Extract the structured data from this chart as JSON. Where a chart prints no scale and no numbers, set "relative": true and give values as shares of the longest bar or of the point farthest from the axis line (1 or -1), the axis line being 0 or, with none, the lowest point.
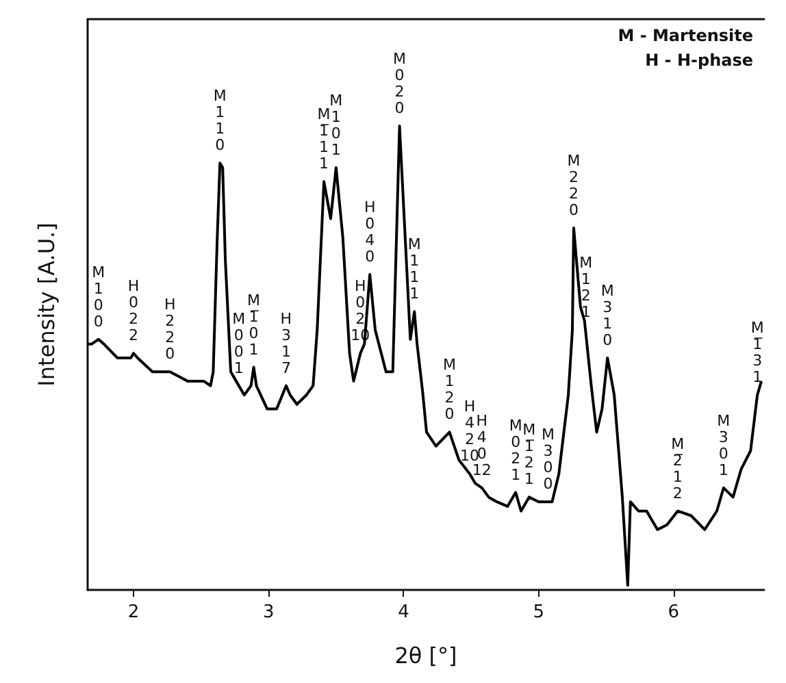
{
  "chart_data": {
    "type": "line",
    "xlabel": "2θ [°]",
    "ylabel": "Intensity [A.U.]",
    "relative": true,
    "xlim": [
      1.66,
      6.67
    ],
    "xticks": [
      2,
      3,
      4,
      5,
      6
    ],
    "grid": false,
    "marker": "none",
    "line_style": "solid",
    "series": [
      {
        "color": "#000000",
        "x": [
          1.66,
          1.69,
          1.74,
          1.78,
          1.88,
          1.98,
          2.0,
          2.03,
          2.14,
          2.24,
          2.27,
          2.4,
          2.52,
          2.57,
          2.59,
          2.62,
          2.64,
          2.66,
          2.68,
          2.72,
          2.76,
          2.82,
          2.87,
          2.89,
          2.91,
          2.99,
          3.06,
          3.13,
          3.16,
          3.21,
          3.28,
          3.33,
          3.36,
          3.41,
          3.46,
          3.5,
          3.55,
          3.6,
          3.63,
          3.68,
          3.71,
          3.75,
          3.79,
          3.87,
          3.92,
          3.97,
          4.05,
          4.08,
          4.1,
          4.14,
          4.17,
          4.24,
          4.34,
          4.41,
          4.49,
          4.53,
          4.58,
          4.63,
          4.69,
          4.77,
          4.83,
          4.87,
          4.93,
          5.0,
          5.1,
          5.15,
          5.22,
          5.25,
          5.26,
          5.31,
          5.34,
          5.39,
          5.43,
          5.47,
          5.51,
          5.56,
          5.62,
          5.66,
          5.68,
          5.74,
          5.8,
          5.88,
          5.95,
          6.03,
          6.13,
          6.23,
          6.32,
          6.37,
          6.44,
          6.5,
          6.57,
          6.62,
          6.65
        ],
        "values": [
          0.53,
          0.53,
          0.54,
          0.53,
          0.5,
          0.5,
          0.51,
          0.5,
          0.47,
          0.47,
          0.47,
          0.45,
          0.45,
          0.44,
          0.47,
          0.76,
          0.92,
          0.91,
          0.71,
          0.47,
          0.45,
          0.42,
          0.44,
          0.48,
          0.44,
          0.39,
          0.39,
          0.44,
          0.42,
          0.4,
          0.42,
          0.44,
          0.56,
          0.88,
          0.8,
          0.91,
          0.76,
          0.51,
          0.45,
          0.51,
          0.53,
          0.68,
          0.56,
          0.47,
          0.47,
          1.0,
          0.54,
          0.6,
          0.53,
          0.43,
          0.34,
          0.31,
          0.34,
          0.28,
          0.25,
          0.23,
          0.22,
          0.2,
          0.19,
          0.18,
          0.21,
          0.17,
          0.2,
          0.19,
          0.19,
          0.25,
          0.42,
          0.56,
          0.78,
          0.61,
          0.58,
          0.44,
          0.34,
          0.39,
          0.5,
          0.42,
          0.2,
          0.01,
          0.19,
          0.17,
          0.17,
          0.13,
          0.14,
          0.17,
          0.16,
          0.13,
          0.17,
          0.22,
          0.2,
          0.26,
          0.3,
          0.42,
          0.45
        ]
      }
    ],
    "annotations": [
      "M - Martensite",
      "H - H-phase",
      {
        "text": "M 1 0 0",
        "x": 1.74,
        "y": 0.54
      },
      {
        "text": "H 0 2 2",
        "x": 2.0,
        "y": 0.51
      },
      {
        "text": "H 2 2 0",
        "x": 2.27,
        "y": 0.47
      },
      {
        "text": "M 1 1 0",
        "x": 2.64,
        "y": 0.92
      },
      {
        "text": "M 0 0 1",
        "x": 2.78,
        "y": 0.44
      },
      {
        "text": "M 1̅ 0 1",
        "x": 2.89,
        "y": 0.48
      },
      {
        "text": "H 3 1 7",
        "x": 3.13,
        "y": 0.44
      },
      {
        "text": "M 1̅ 1 1",
        "x": 3.41,
        "y": 0.88
      },
      {
        "text": "M 1 0 1",
        "x": 3.5,
        "y": 0.91
      },
      {
        "text": "H 0 2 10",
        "x": 3.68,
        "y": 0.51
      },
      {
        "text": "H 0 4 0",
        "x": 3.75,
        "y": 0.68
      },
      {
        "text": "M 0 2 0",
        "x": 3.97,
        "y": 1.0
      },
      {
        "text": "M 1 1 1",
        "x": 4.08,
        "y": 0.6
      },
      {
        "text": "M 1 2 0",
        "x": 4.34,
        "y": 0.34
      },
      {
        "text": "H 4 2 10",
        "x": 4.49,
        "y": 0.25
      },
      {
        "text": "H 4 0 12",
        "x": 4.58,
        "y": 0.22
      },
      {
        "text": "M 0 2 1",
        "x": 4.83,
        "y": 0.21
      },
      {
        "text": "M 1̅ 2 1",
        "x": 4.93,
        "y": 0.2
      },
      {
        "text": "M 3 0 0",
        "x": 5.07,
        "y": 0.19
      },
      {
        "text": "M 2 2 0",
        "x": 5.26,
        "y": 0.78
      },
      {
        "text": "M 1 2 1",
        "x": 5.35,
        "y": 0.56
      },
      {
        "text": "M 3 1 0",
        "x": 5.51,
        "y": 0.5
      },
      {
        "text": "M 2̅ 1 2",
        "x": 6.03,
        "y": 0.17
      },
      {
        "text": "M 3 0 1",
        "x": 6.37,
        "y": 0.22
      },
      {
        "text": "M 1̅ 3 1",
        "x": 6.62,
        "y": 0.42
      }
    ]
  }
}
